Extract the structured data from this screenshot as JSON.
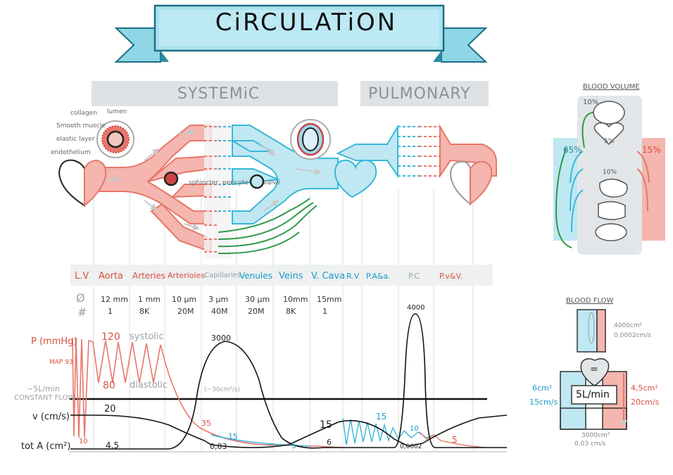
{
  "title": "CiRCULATiON",
  "sections": {
    "systemic": "SYSTEMiC",
    "pulmonary": "PULMONARY"
  },
  "wall_layers": {
    "collagen": "collagen",
    "smooth_muscle": "Smooth muscle",
    "elastic_layer": "elastic layer",
    "endothelium": "endothelium",
    "lumen": "lumen"
  },
  "capillary_labels": {
    "sphincter": "sphincter",
    "pericyte": "pericyte",
    "valve": "valve"
  },
  "vessels": [
    {
      "label": "L.V",
      "side": "red"
    },
    {
      "label": "Aorta",
      "side": "red"
    },
    {
      "label": "Arteries",
      "side": "red"
    },
    {
      "label": "Arterioles",
      "side": "red"
    },
    {
      "label": "Capillaries",
      "side": "grey"
    },
    {
      "label": "Venules",
      "side": "blue"
    },
    {
      "label": "Veins",
      "side": "blue"
    },
    {
      "label": "V. Cava",
      "side": "blue"
    },
    {
      "label": "R.V",
      "side": "blue"
    },
    {
      "label": "P.A&a.",
      "side": "blue"
    },
    {
      "label": "P.C",
      "side": "grey"
    },
    {
      "label": "P.v&V.",
      "side": "red"
    }
  ],
  "diameter_symbol": "Ø",
  "number_symbol": "#",
  "diameters": [
    "12 mm",
    "1 mm",
    "10 µm",
    "3 µm",
    "30 µm",
    "10mm",
    "15mm"
  ],
  "counts": [
    "1",
    "8K",
    "20M",
    "40M",
    "20M",
    "8K",
    "1"
  ],
  "row_labels": {
    "pressure": "P (mmHg)",
    "map": "MAP 93",
    "flow": "~5L/min",
    "constant_flow": "CONSTANT FLOW",
    "velocity": "v (cm/s)",
    "area": "tot A (cm²)"
  },
  "graph_labels": {
    "systolic_value": "120",
    "systolic": "systolic",
    "diastolic_value": "80",
    "diastolic": "diastolic",
    "cap_area_peak": "3000",
    "cap_area_note": "(~30cm²/s)",
    "pc_area_peak": "4000",
    "v_aorta": "20",
    "a_aorta": "4,5",
    "p_cap": "35",
    "p_venule": "15",
    "v_cap": "0,03",
    "p_vc": "5",
    "v_vc": "15",
    "a_vc": "6",
    "p_pa": "15",
    "p_pc": "10",
    "v_pc": "0,0002",
    "p_pv": "5",
    "lv_min": "10"
  },
  "blood_volume": {
    "heading": "BLOOD VOLUME",
    "pulmonary": "10%",
    "heart": "5%",
    "arteries": "10%",
    "veins": "65%",
    "systemic_arterial": "15%"
  },
  "blood_flow": {
    "heading": "BLOOD FLOW",
    "top_area": "4000cm²",
    "top_velocity": "0,0002cm/s",
    "equals": "=",
    "flow": "5L/min",
    "left_area": "6cm²",
    "left_velocity": "15cm/s",
    "right_area": "4,5cm²",
    "right_velocity": "20cm/s",
    "bottom_area": "3000cm²",
    "bottom_velocity": "0,03 cm/s"
  },
  "colors": {
    "arterial": "#e8766a",
    "arterial_fill": "#f4b6ae",
    "venous": "#3ab7d8",
    "venous_fill": "#bfe8f3",
    "banner": "#7fd3e4",
    "banner_dark": "#2a9db8",
    "grey_band": "#dfe2e5",
    "green": "#2e9a4a"
  },
  "chart_data": {
    "type": "line",
    "series": [
      {
        "name": "P (mmHg)",
        "points": [
          [
            "L.V",
            120
          ],
          [
            "Aorta",
            120
          ],
          [
            "Arteries",
            93
          ],
          [
            "Arterioles",
            35
          ],
          [
            "Capillaries",
            15
          ],
          [
            "Venules",
            5
          ],
          [
            "Veins",
            5
          ],
          [
            "V. Cava",
            5
          ],
          [
            "R.V",
            15
          ],
          [
            "P.A&a.",
            15
          ],
          [
            "P.C",
            10
          ],
          [
            "P.v&V.",
            5
          ]
        ]
      },
      {
        "name": "v (cm/s)",
        "points": [
          [
            "Aorta",
            20
          ],
          [
            "Capillaries",
            0.03
          ],
          [
            "V. Cava",
            15
          ],
          [
            "P.C",
            0.0002
          ]
        ]
      },
      {
        "name": "tot A (cm²)",
        "points": [
          [
            "Aorta",
            4.5
          ],
          [
            "Capillaries",
            3000
          ],
          [
            "V. Cava",
            6
          ],
          [
            "P.C",
            4000
          ]
        ]
      }
    ]
  }
}
